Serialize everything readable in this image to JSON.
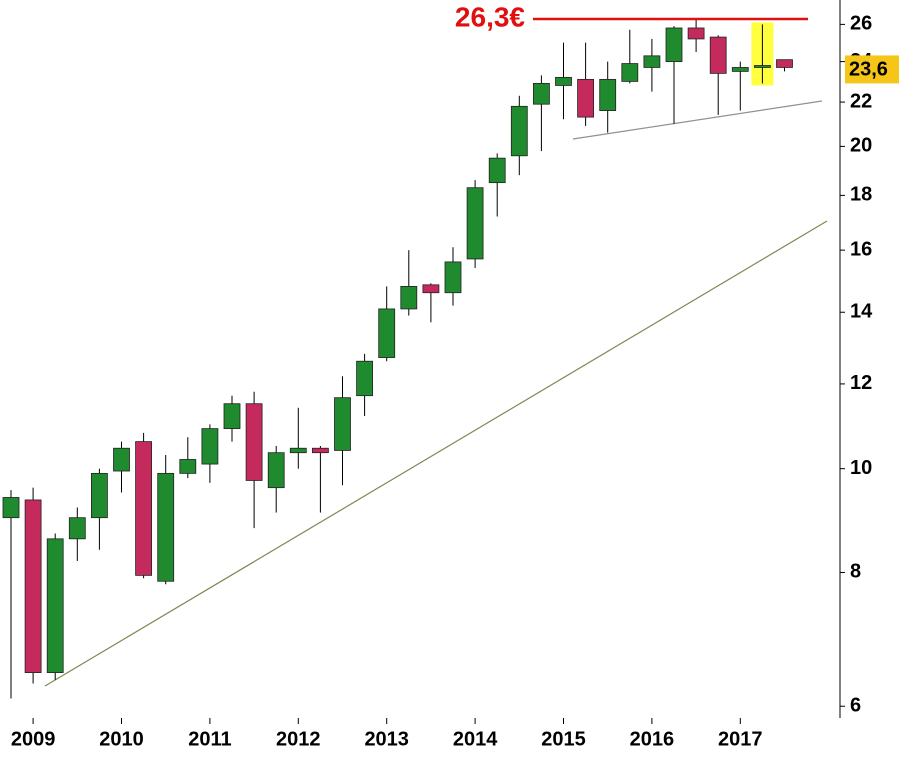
{
  "chart_data": {
    "type": "candlestick",
    "categories": [
      null,
      "2009",
      null,
      null,
      null,
      "2010",
      null,
      null,
      null,
      "2011",
      null,
      null,
      null,
      "2012",
      null,
      null,
      null,
      "2013",
      null,
      null,
      null,
      "2014",
      null,
      null,
      null,
      "2015",
      null,
      null,
      null,
      "2016",
      null,
      null,
      null,
      "2017",
      null,
      null
    ],
    "open": [
      9.0,
      9.35,
      6.45,
      8.6,
      9.0,
      9.95,
      10.6,
      7.85,
      9.9,
      10.1,
      10.9,
      11.5,
      9.6,
      10.35,
      10.45,
      10.4,
      11.7,
      12.7,
      14.1,
      14.85,
      14.6,
      15.7,
      18.5,
      19.6,
      21.9,
      22.8,
      23.1,
      21.6,
      23.0,
      23.7,
      24.0,
      25.8,
      25.3,
      23.5,
      23.7,
      24.1
    ],
    "high": [
      9.55,
      9.6,
      8.7,
      9.2,
      10.0,
      10.6,
      10.8,
      10.3,
      10.7,
      11.0,
      11.7,
      11.8,
      10.5,
      11.4,
      10.5,
      12.2,
      12.8,
      14.8,
      16.0,
      14.9,
      16.1,
      18.6,
      19.7,
      22.3,
      23.3,
      25.0,
      25.0,
      24.0,
      25.7,
      25.2,
      25.9,
      26.3,
      25.4,
      24.0,
      26.0,
      24.1
    ],
    "low": [
      6.1,
      6.3,
      6.35,
      8.2,
      8.4,
      9.5,
      7.9,
      7.8,
      9.8,
      9.7,
      10.6,
      8.8,
      9.1,
      10.0,
      9.1,
      9.65,
      11.2,
      12.6,
      13.9,
      13.7,
      14.2,
      15.4,
      17.2,
      18.8,
      19.8,
      21.2,
      20.9,
      20.6,
      22.9,
      22.5,
      21.0,
      24.5,
      21.4,
      21.6,
      22.9,
      23.5
    ],
    "close": [
      9.4,
      6.45,
      8.6,
      9.0,
      9.9,
      10.45,
      7.95,
      9.9,
      10.2,
      10.9,
      11.5,
      9.75,
      10.35,
      10.45,
      10.35,
      11.65,
      12.6,
      14.1,
      14.8,
      14.6,
      15.6,
      18.3,
      19.5,
      21.8,
      22.9,
      23.2,
      21.3,
      23.1,
      23.9,
      24.3,
      25.8,
      25.2,
      23.4,
      23.7,
      23.8,
      23.7
    ],
    "up_color": "#1f8a2e",
    "down_color": "#c42a5c",
    "highlight": {
      "index": 34,
      "color": "#ffff40"
    },
    "resistance": {
      "value": 26.3,
      "label": "26,3€",
      "color": "#e01010"
    },
    "last_price": {
      "value": 23.6,
      "label": "23,6",
      "color": "#f5c518"
    },
    "log_scale": true,
    "ylim": [
      5.85,
      27.4
    ],
    "yticks": [
      6,
      8,
      10,
      12,
      14,
      16,
      18,
      20,
      22,
      24,
      26
    ]
  }
}
